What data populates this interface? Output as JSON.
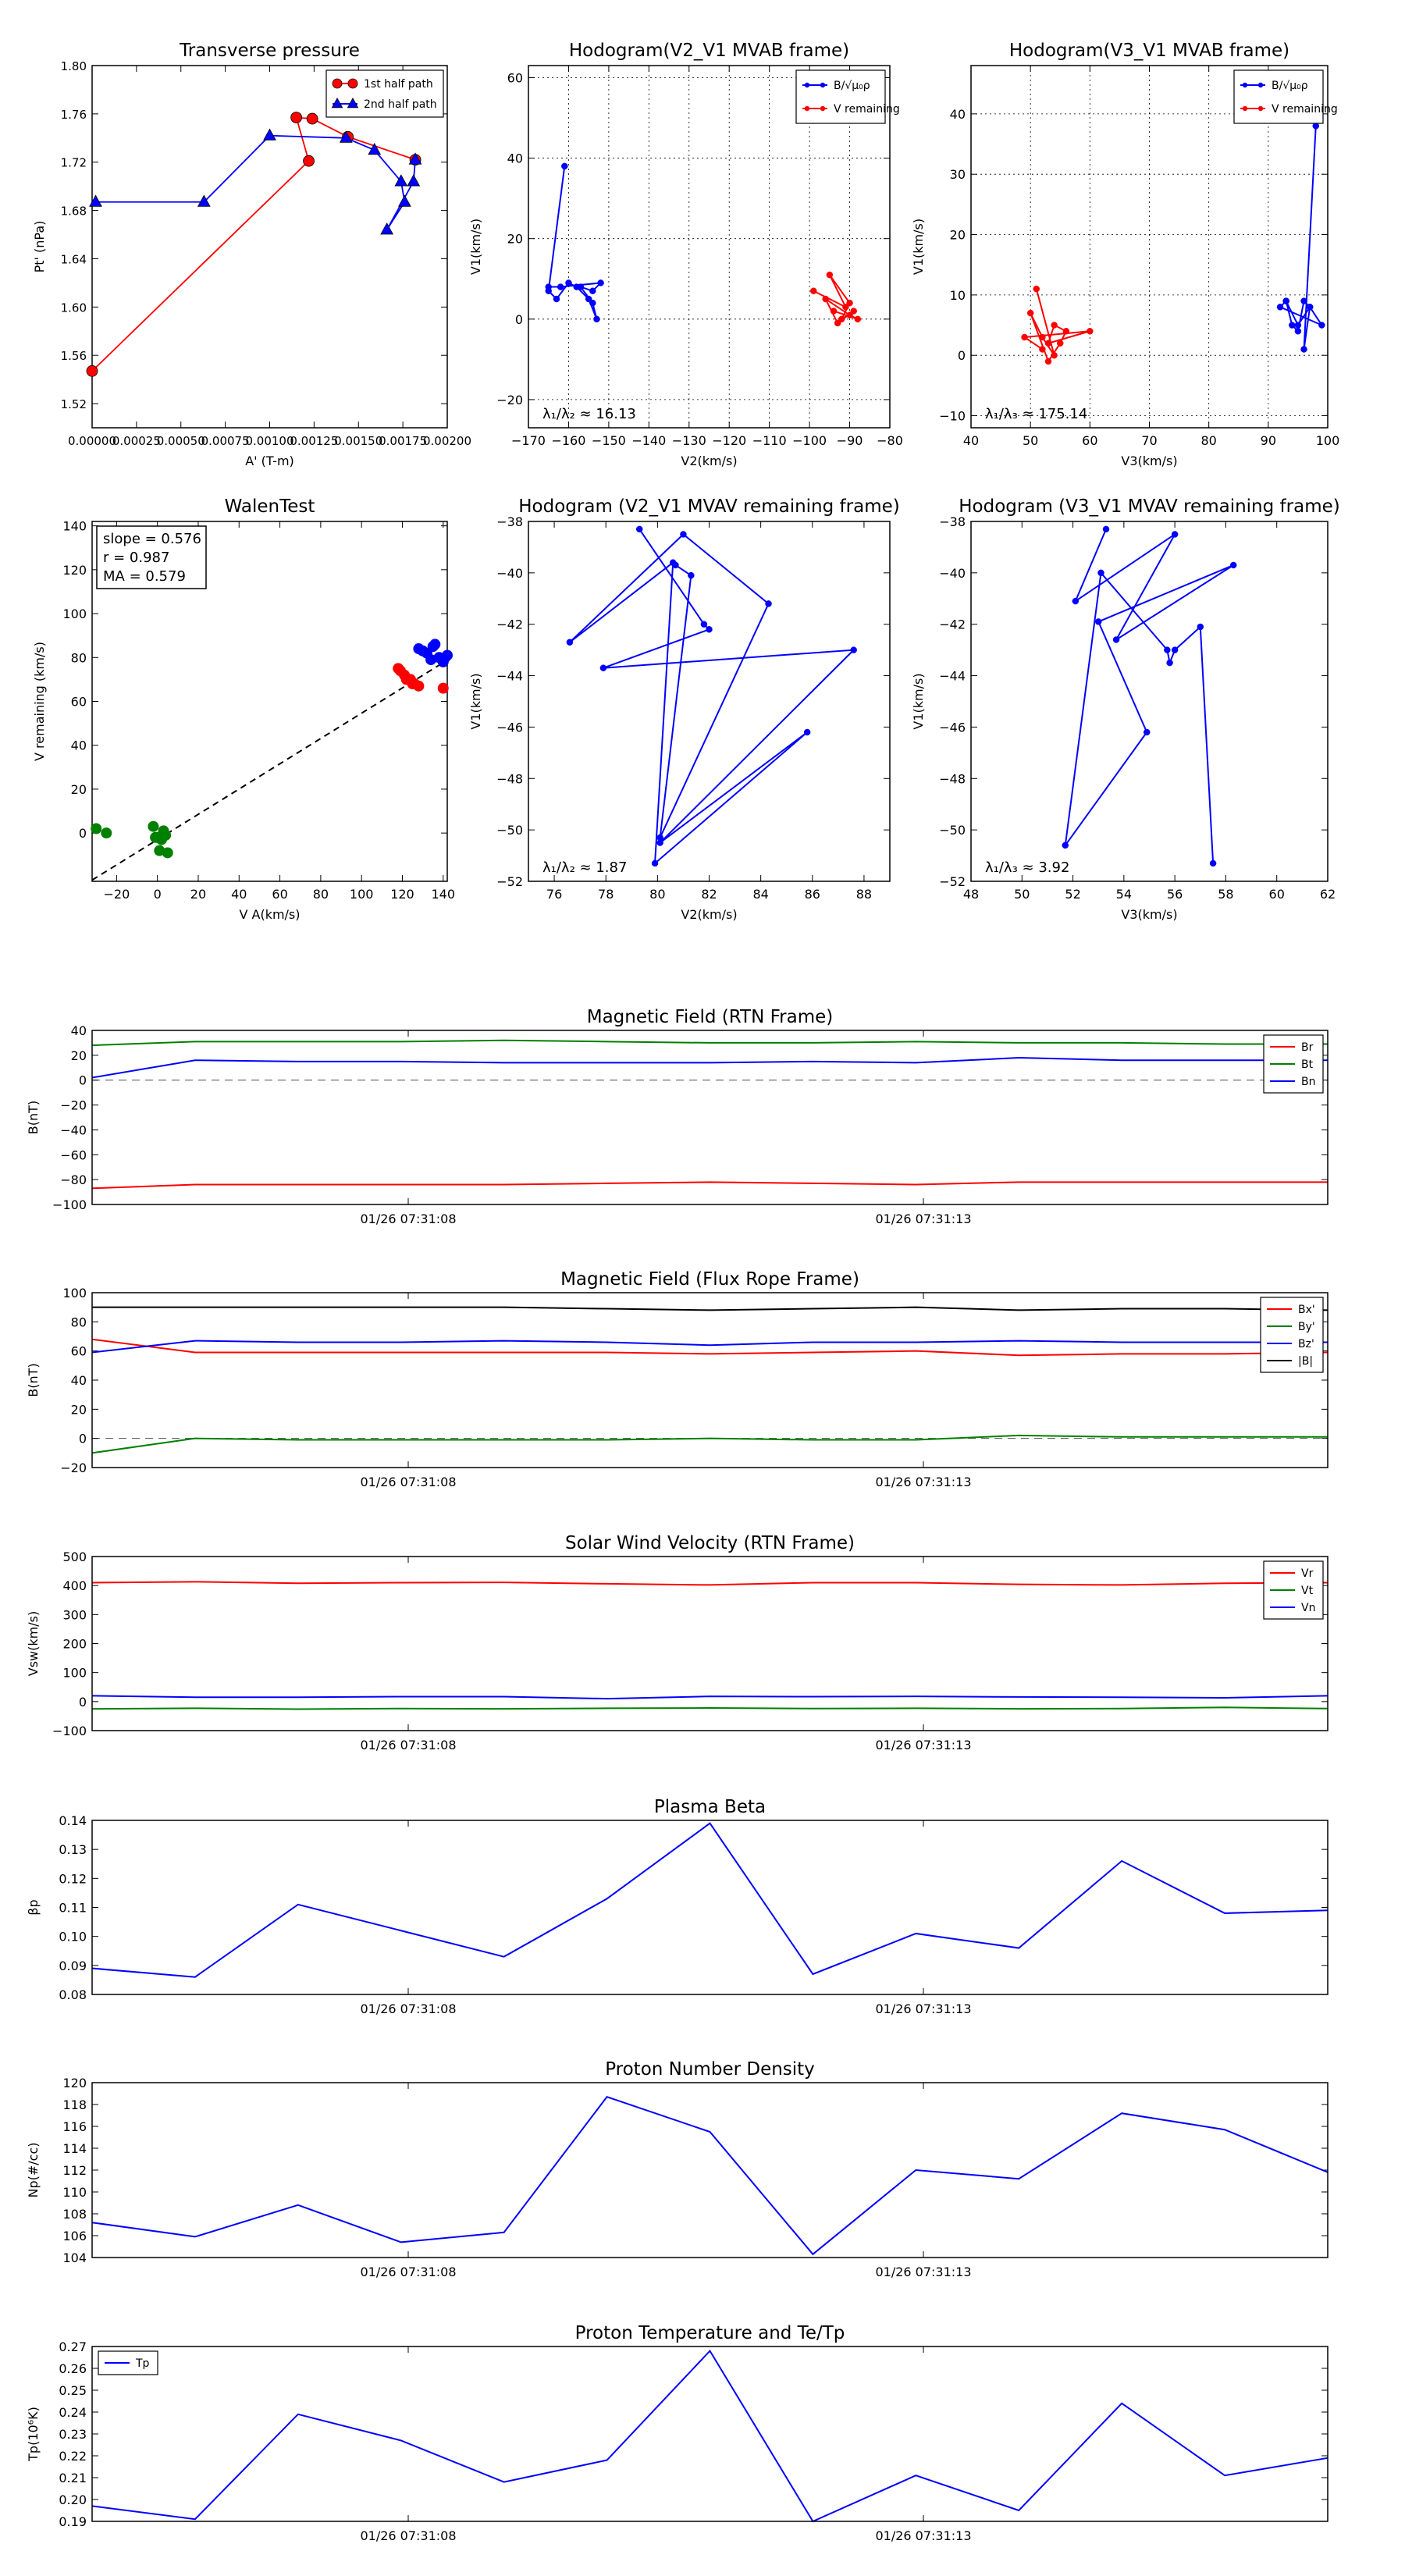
{
  "colors": {
    "red": "#ff0000",
    "blue": "#0000ff",
    "green": "#008000",
    "black": "#000000"
  },
  "chart_data": [
    {
      "type": "line",
      "title": "Transverse pressure",
      "xlabel": "A' (T-m)",
      "ylabel": "Pt' (nPa)",
      "xlim": [
        0.0,
        0.002
      ],
      "ylim": [
        1.5,
        1.8
      ],
      "xticks": [
        0.0,
        0.00025,
        0.0005,
        0.00075,
        0.001,
        0.00125,
        0.0015,
        0.00175,
        0.002
      ],
      "xtick_labels": [
        "0.00000",
        "0.00025",
        "0.00050",
        "0.00075",
        "0.00100",
        "0.00125",
        "0.00150",
        "0.00175",
        "0.00200"
      ],
      "yticks": [
        1.52,
        1.56,
        1.6,
        1.64,
        1.68,
        1.72,
        1.76,
        1.8
      ],
      "ytick_labels": [
        "1.52",
        "1.56",
        "1.60",
        "1.64",
        "1.68",
        "1.72",
        "1.76",
        "1.80"
      ],
      "grid": false,
      "legend": "top-right",
      "series": [
        {
          "name": "1st half path",
          "color": "red",
          "marker": "circle",
          "x": [
            0.0,
            0.00122,
            0.00115,
            0.00124,
            0.00144,
            0.00182
          ],
          "y": [
            1.547,
            1.721,
            1.757,
            1.756,
            1.741,
            1.722
          ]
        },
        {
          "name": "2nd half path",
          "color": "blue",
          "marker": "triangle",
          "x": [
            2e-05,
            0.00063,
            0.001,
            0.00143,
            0.00159,
            0.00174,
            0.00176,
            0.00166,
            0.00181,
            0.00182
          ],
          "y": [
            1.687,
            1.687,
            1.742,
            1.74,
            1.73,
            1.704,
            1.687,
            1.664,
            1.704,
            1.722
          ]
        }
      ]
    },
    {
      "type": "scatter",
      "title": "Hodogram(V2_V1 MVAB frame)",
      "xlabel": "V2(km/s)",
      "ylabel": "V1(km/s)",
      "xlim": [
        -170,
        -80
      ],
      "ylim": [
        -27,
        63
      ],
      "xticks": [
        -170,
        -160,
        -150,
        -140,
        -130,
        -120,
        -110,
        -100,
        -90,
        -80
      ],
      "xtick_labels": [
        "−170",
        "−160",
        "−150",
        "−140",
        "−130",
        "−120",
        "−110",
        "−100",
        "−90",
        "−80"
      ],
      "yticks": [
        -20,
        0,
        20,
        40,
        60
      ],
      "ytick_labels": [
        "−20",
        "0",
        "20",
        "40",
        "60"
      ],
      "grid": true,
      "legend": "top-right",
      "legend_labels": [
        "B/√μ₀ρ",
        "V remaining"
      ],
      "annotation": "λ₁/λ₂ ≈ 16.13",
      "series": [
        {
          "name": "B/√μ₀ρ",
          "color": "blue",
          "x": [
            -161,
            -165,
            -163,
            -160,
            -158,
            -155,
            -153,
            -154,
            -157,
            -154,
            -152,
            -162,
            -165
          ],
          "y": [
            38,
            7,
            5,
            9,
            8,
            5,
            0,
            4,
            8,
            7,
            9,
            8,
            8
          ]
        },
        {
          "name": "V remaining",
          "color": "red",
          "x": [
            -99,
            -91,
            -95,
            -90,
            -92,
            -89,
            -93,
            -96,
            -90,
            -88,
            -94
          ],
          "y": [
            7,
            3,
            11,
            4,
            0,
            2,
            -1,
            5,
            1,
            0,
            2
          ]
        }
      ]
    },
    {
      "type": "scatter",
      "title": "Hodogram(V3_V1 MVAB frame)",
      "xlabel": "V3(km/s)",
      "ylabel": "V1(km/s)",
      "xlim": [
        40,
        100
      ],
      "ylim": [
        -12,
        48
      ],
      "xticks": [
        40,
        50,
        60,
        70,
        80,
        90,
        100
      ],
      "xtick_labels": [
        "40",
        "50",
        "60",
        "70",
        "80",
        "90",
        "100"
      ],
      "yticks": [
        -10,
        0,
        10,
        20,
        30,
        40
      ],
      "ytick_labels": [
        "−10",
        "0",
        "10",
        "20",
        "30",
        "40"
      ],
      "grid": true,
      "legend": "top-right",
      "legend_labels": [
        "B/√μ₀ρ",
        "V remaining"
      ],
      "annotation": "λ₁/λ₃ ≈ 175.14",
      "series": [
        {
          "name": "B/√μ₀ρ",
          "color": "blue",
          "x": [
            98,
            96,
            97,
            95,
            93,
            94,
            95,
            96,
            97,
            99,
            92,
            93
          ],
          "y": [
            38,
            1,
            8,
            5,
            9,
            5,
            4,
            9,
            8,
            5,
            8,
            9
          ]
        },
        {
          "name": "V remaining",
          "color": "red",
          "x": [
            51,
            54,
            52,
            50,
            53,
            55,
            56,
            54,
            53,
            60,
            49,
            52
          ],
          "y": [
            11,
            0,
            3,
            7,
            -1,
            2,
            4,
            5,
            2,
            4,
            3,
            1
          ]
        }
      ]
    },
    {
      "type": "scatter",
      "title": "WalenTest",
      "xlabel": "V A(km/s)",
      "ylabel": "V remaining (km/s)",
      "xlim": [
        -32,
        142
      ],
      "ylim": [
        -22,
        142
      ],
      "xticks": [
        -20,
        0,
        20,
        40,
        60,
        80,
        100,
        120,
        140
      ],
      "xtick_labels": [
        "−20",
        "0",
        "20",
        "40",
        "60",
        "80",
        "100",
        "120",
        "140"
      ],
      "yticks": [
        0,
        20,
        40,
        60,
        80,
        100,
        120,
        140
      ],
      "ytick_labels": [
        "0",
        "20",
        "40",
        "60",
        "80",
        "100",
        "120",
        "140"
      ],
      "grid": false,
      "textbox": [
        "slope = 0.576",
        "r = 0.987",
        "MA = 0.579"
      ],
      "fit": {
        "slope": 0.576,
        "intercept": -3.0
      },
      "series": [
        {
          "name": "green",
          "color": "green",
          "x": [
            -30,
            -25,
            0,
            2,
            4,
            -2,
            1,
            5,
            3,
            -1
          ],
          "y": [
            2,
            0,
            -2,
            -3,
            -1,
            3,
            -8,
            -9,
            1,
            -2
          ]
        },
        {
          "name": "red",
          "color": "red",
          "x": [
            118,
            122,
            125,
            128,
            121,
            119,
            140,
            126,
            124
          ],
          "y": [
            75,
            70,
            68,
            67,
            72,
            74,
            66,
            68,
            70
          ]
        },
        {
          "name": "blue",
          "color": "blue",
          "x": [
            128,
            132,
            135,
            138,
            140,
            142,
            130,
            136,
            134,
            141
          ],
          "y": [
            84,
            82,
            85,
            80,
            78,
            81,
            83,
            86,
            79,
            80
          ]
        }
      ]
    },
    {
      "type": "line",
      "title": "Hodogram (V2_V1 MVAV remaining frame)",
      "xlabel": "V2(km/s)",
      "ylabel": "V1(km/s)",
      "xlim": [
        75,
        89
      ],
      "ylim": [
        -52,
        -38
      ],
      "xticks": [
        76,
        78,
        80,
        82,
        84,
        86,
        88
      ],
      "xtick_labels": [
        "76",
        "78",
        "80",
        "82",
        "84",
        "86",
        "88"
      ],
      "yticks": [
        -52,
        -50,
        -48,
        -46,
        -44,
        -42,
        -40,
        -38
      ],
      "ytick_labels": [
        "−52",
        "−50",
        "−48",
        "−46",
        "−44",
        "−42",
        "−40",
        "−38"
      ],
      "grid": false,
      "annotation": "λ₁/λ₂ ≈ 1.87",
      "series": [
        {
          "name": "path",
          "color": "blue",
          "x": [
            79.3,
            81.8,
            82.0,
            77.9,
            87.6,
            80.1,
            85.8,
            79.9,
            80.6,
            76.6,
            81.0,
            84.3,
            80.1,
            81.3,
            80.7
          ],
          "y": [
            -38.3,
            -42.0,
            -42.2,
            -43.7,
            -43.0,
            -50.5,
            -46.2,
            -51.3,
            -39.6,
            -42.7,
            -38.5,
            -41.2,
            -50.3,
            -40.1,
            -39.7
          ]
        }
      ]
    },
    {
      "type": "line",
      "title": "Hodogram (V3_V1 MVAV remaining frame)",
      "xlabel": "V3(km/s)",
      "ylabel": "V1(km/s)",
      "xlim": [
        48,
        62
      ],
      "ylim": [
        -52,
        -38
      ],
      "xticks": [
        48,
        50,
        52,
        54,
        56,
        58,
        60,
        62
      ],
      "xtick_labels": [
        "48",
        "50",
        "52",
        "54",
        "56",
        "58",
        "60",
        "62"
      ],
      "yticks": [
        -52,
        -50,
        -48,
        -46,
        -44,
        -42,
        -40,
        -38
      ],
      "ytick_labels": [
        "−52",
        "−50",
        "−48",
        "−46",
        "−44",
        "−42",
        "−40",
        "−38"
      ],
      "grid": false,
      "annotation": "λ₁/λ₃ ≈ 3.92",
      "series": [
        {
          "name": "path",
          "color": "blue",
          "x": [
            53.3,
            52.1,
            56.0,
            53.7,
            58.3,
            53.0,
            54.9,
            51.7,
            53.1,
            55.7,
            55.8,
            56.0,
            57.0,
            57.5
          ],
          "y": [
            -38.3,
            -41.1,
            -38.5,
            -42.6,
            -39.7,
            -41.9,
            -46.2,
            -50.6,
            -40.0,
            -43.0,
            -43.5,
            -43.0,
            -42.1,
            -51.3
          ]
        }
      ]
    },
    {
      "type": "line",
      "title": "Magnetic Field (RTN Frame)",
      "ylabel": "B(nT)",
      "ylim": [
        -100,
        40
      ],
      "yticks": [
        -100,
        -80,
        -60,
        -40,
        -20,
        0,
        20,
        40
      ],
      "ytick_labels": [
        "−100",
        "−80",
        "−60",
        "−40",
        "−20",
        "0",
        "20",
        "40"
      ],
      "xtick_labels": [
        "01/26 07:31:08",
        "01/26 07:31:13"
      ],
      "legend": "top-right",
      "zero_line": true,
      "series": [
        {
          "name": "Br",
          "color": "red",
          "values": [
            -87,
            -84,
            -84,
            -84,
            -84,
            -83,
            -82,
            -83,
            -84,
            -82,
            -82,
            -82,
            -82
          ]
        },
        {
          "name": "Bt",
          "color": "green",
          "values": [
            28,
            31,
            31,
            31,
            32,
            31,
            30,
            30,
            31,
            30,
            30,
            29,
            29
          ]
        },
        {
          "name": "Bn",
          "color": "blue",
          "values": [
            2,
            16,
            15,
            15,
            14,
            14,
            14,
            15,
            14,
            18,
            16,
            16,
            16
          ]
        }
      ]
    },
    {
      "type": "line",
      "title": "Magnetic Field (Flux Rope Frame)",
      "ylabel": "B(nT)",
      "ylim": [
        -20,
        100
      ],
      "yticks": [
        -20,
        0,
        20,
        40,
        60,
        80,
        100
      ],
      "ytick_labels": [
        "−20",
        "0",
        "20",
        "40",
        "60",
        "80",
        "100"
      ],
      "xtick_labels": [
        "01/26 07:31:08",
        "01/26 07:31:13"
      ],
      "legend": "top-right",
      "zero_line": true,
      "series": [
        {
          "name": "Bx'",
          "color": "red",
          "values": [
            68,
            59,
            59,
            59,
            59,
            59,
            58,
            59,
            60,
            57,
            58,
            58,
            59
          ]
        },
        {
          "name": "By'",
          "color": "green",
          "values": [
            -10,
            0,
            -1,
            -1,
            -1,
            -1,
            0,
            -1,
            -1,
            2,
            1,
            1,
            1
          ]
        },
        {
          "name": "Bz'",
          "color": "blue",
          "values": [
            59,
            67,
            66,
            66,
            67,
            66,
            64,
            66,
            66,
            67,
            66,
            66,
            66
          ]
        },
        {
          "name": "|B|",
          "color": "black",
          "values": [
            90,
            90,
            90,
            90,
            90,
            89,
            88,
            89,
            90,
            88,
            89,
            89,
            88
          ]
        }
      ]
    },
    {
      "type": "line",
      "title": "Solar Wind Velocity (RTN Frame)",
      "ylabel": "Vsw(km/s)",
      "ylim": [
        -100,
        500
      ],
      "yticks": [
        -100,
        0,
        100,
        200,
        300,
        400,
        500
      ],
      "ytick_labels": [
        "−100",
        "0",
        "100",
        "200",
        "300",
        "400",
        "500"
      ],
      "xtick_labels": [
        "01/26 07:31:08",
        "01/26 07:31:13"
      ],
      "legend": "top-right",
      "series": [
        {
          "name": "Vr",
          "color": "red",
          "values": [
            410,
            413,
            408,
            410,
            411,
            406,
            402,
            410,
            410,
            404,
            402,
            408,
            410
          ]
        },
        {
          "name": "Vt",
          "color": "green",
          "values": [
            -25,
            -23,
            -26,
            -24,
            -25,
            -23,
            -22,
            -24,
            -23,
            -25,
            -24,
            -20,
            -24
          ]
        },
        {
          "name": "Vn",
          "color": "blue",
          "values": [
            20,
            15,
            15,
            17,
            17,
            10,
            18,
            17,
            18,
            16,
            15,
            13,
            20
          ]
        }
      ]
    },
    {
      "type": "line",
      "title": "Plasma Beta",
      "ylabel": "βp",
      "ylim": [
        0.08,
        0.14
      ],
      "yticks": [
        0.08,
        0.09,
        0.1,
        0.11,
        0.12,
        0.13,
        0.14
      ],
      "ytick_labels": [
        "0.08",
        "0.09",
        "0.10",
        "0.11",
        "0.12",
        "0.13",
        "0.14"
      ],
      "xtick_labels": [
        "01/26 07:31:08",
        "01/26 07:31:13"
      ],
      "series": [
        {
          "name": "beta",
          "color": "blue",
          "values": [
            0.089,
            0.086,
            0.111,
            0.102,
            0.093,
            0.113,
            0.139,
            0.087,
            0.101,
            0.096,
            0.126,
            0.108,
            0.109
          ]
        }
      ]
    },
    {
      "type": "line",
      "title": "Proton Number Density",
      "ylabel": "Np(#/cc)",
      "ylim": [
        104,
        120
      ],
      "yticks": [
        104,
        106,
        108,
        110,
        112,
        114,
        116,
        118,
        120
      ],
      "ytick_labels": [
        "104",
        "106",
        "108",
        "110",
        "112",
        "114",
        "116",
        "118",
        "120"
      ],
      "xtick_labels": [
        "01/26 07:31:08",
        "01/26 07:31:13"
      ],
      "series": [
        {
          "name": "Np",
          "color": "blue",
          "values": [
            107.2,
            105.9,
            108.8,
            105.4,
            106.3,
            118.7,
            115.5,
            104.3,
            112.0,
            111.2,
            117.2,
            115.7,
            111.8
          ]
        }
      ]
    },
    {
      "type": "line",
      "title": "Proton Temperature and Te/Tp",
      "ylabel": "Tp(10⁶K)",
      "ylim": [
        0.19,
        0.27
      ],
      "yticks": [
        0.19,
        0.2,
        0.21,
        0.22,
        0.23,
        0.24,
        0.25,
        0.26,
        0.27
      ],
      "ytick_labels": [
        "0.19",
        "0.20",
        "0.21",
        "0.22",
        "0.23",
        "0.24",
        "0.25",
        "0.26",
        "0.27"
      ],
      "xtick_labels": [
        "01/26 07:31:08",
        "01/26 07:31:13"
      ],
      "legend": "top-left",
      "series": [
        {
          "name": "Tp",
          "color": "blue",
          "values": [
            0.197,
            0.191,
            0.239,
            0.227,
            0.208,
            0.218,
            0.268,
            0.19,
            0.211,
            0.195,
            0.244,
            0.211,
            0.219
          ]
        }
      ]
    }
  ]
}
